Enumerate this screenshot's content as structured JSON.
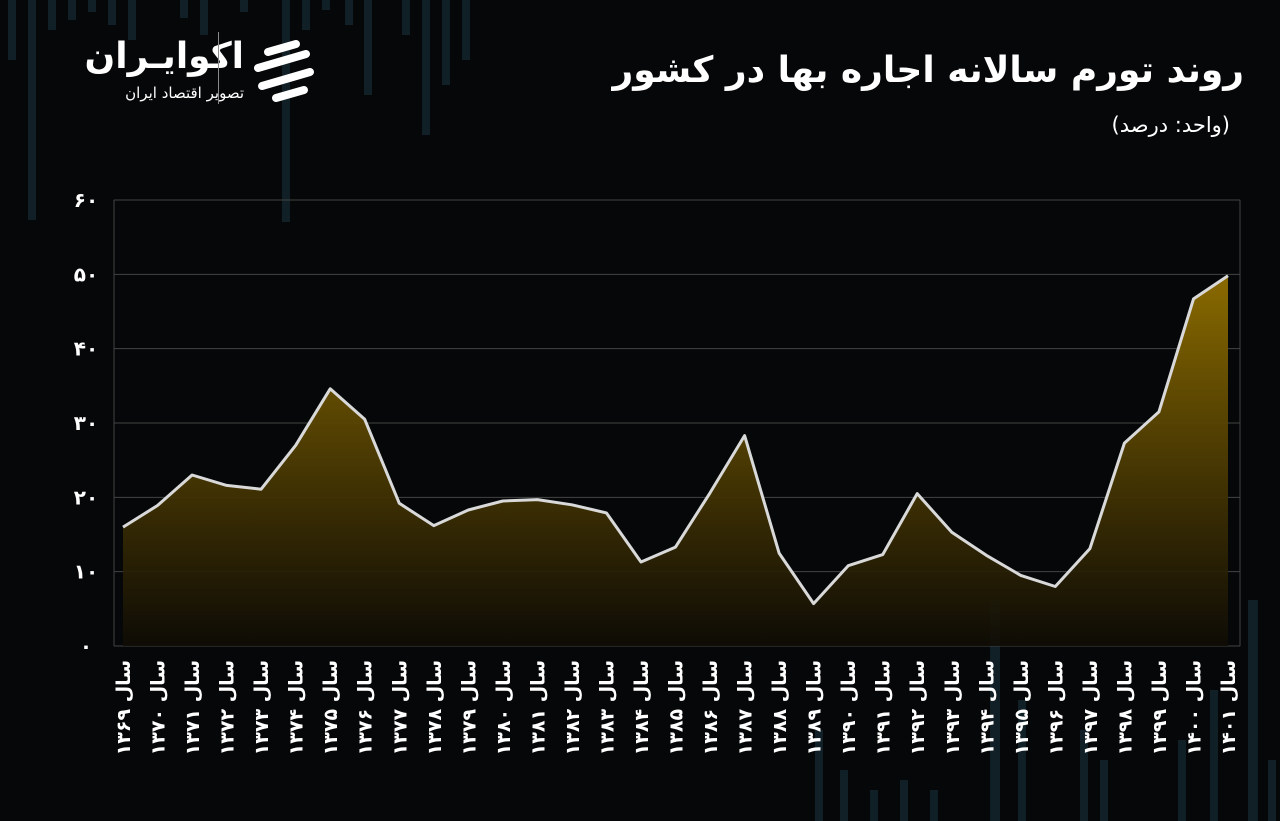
{
  "header": {
    "title": "روند تورم سالانه اجاره بها در کشور",
    "unit": "(واحد: درصد)"
  },
  "brand": {
    "name": "اکوایـران",
    "tagline": "تصویر اقتصاد ایران",
    "icon": "ekoiran-logo-icon"
  },
  "colors": {
    "background": "#050708",
    "line": "#d9d9d9",
    "fill_top": "#8a6a00",
    "fill_bottom": "#0f0c05",
    "grid": "#444444",
    "decor_bars": "#1a3440"
  },
  "chart_data": {
    "type": "area",
    "title": "روند تورم سالانه اجاره بها در کشور",
    "ylabel": "(واحد: درصد)",
    "ylim": [
      0,
      60
    ],
    "yticks": [
      "۰",
      "۱۰",
      "۲۰",
      "۳۰",
      "۴۰",
      "۵۰",
      "۶۰"
    ],
    "grid": true,
    "categories": [
      "سال ۱۳۶۹",
      "سال ۱۳۷۰",
      "سال ۱۳۷۱",
      "سال ۱۳۷۲",
      "سال ۱۳۷۳",
      "سال ۱۳۷۴",
      "سال ۱۳۷۵",
      "سال ۱۳۷۶",
      "سال ۱۳۷۷",
      "سال ۱۳۷۸",
      "سال ۱۳۷۹",
      "سال ۱۳۸۰",
      "سال ۱۳۸۱",
      "سال ۱۳۸۲",
      "سال ۱۳۸۳",
      "سال ۱۳۸۴",
      "سال ۱۳۸۵",
      "سال ۱۳۸۶",
      "سال ۱۳۸۷",
      "سال ۱۳۸۸",
      "سال ۱۳۸۹",
      "سال ۱۳۹۰",
      "سال ۱۳۹۱",
      "سال ۱۳۹۲",
      "سال ۱۳۹۳",
      "سال ۱۳۹۴",
      "سال ۱۳۹۵",
      "سال ۱۳۹۶",
      "سال ۱۳۹۷",
      "سال ۱۳۹۸",
      "سال ۱۳۹۹",
      "سال ۱۴۰۰",
      "سال ۱۴۰۱"
    ],
    "series": [
      {
        "values": [
          16,
          18.9,
          23,
          21.6,
          21.1,
          27,
          34.6,
          30.5,
          19.2,
          16.2,
          18.3,
          19.5,
          19.7,
          19,
          17.9,
          11.3,
          13.3,
          20.6,
          28.3,
          12.5,
          5.7,
          10.8,
          12.3,
          20.5,
          15.3,
          12.2,
          9.5,
          8,
          13.1,
          27.3,
          31.5,
          46.7,
          49.8
        ]
      }
    ]
  }
}
